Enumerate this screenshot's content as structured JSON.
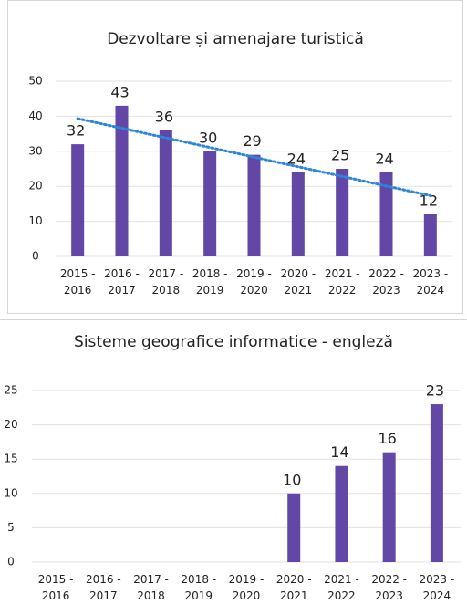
{
  "chart_data": [
    {
      "type": "bar",
      "title": "Dezvoltare și amenajare turistică",
      "categories": [
        "2015 - 2016",
        "2016 - 2017",
        "2017 - 2018",
        "2018 - 2019",
        "2019 - 2020",
        "2020 - 2021",
        "2021 - 2022",
        "2022 - 2023",
        "2023 - 2024"
      ],
      "values": [
        32,
        43,
        36,
        30,
        29,
        24,
        25,
        24,
        12
      ],
      "color": "#6247a6",
      "ylim": [
        0,
        50
      ],
      "yticks": [
        0,
        10,
        20,
        30,
        40,
        50
      ],
      "grid": true,
      "trendline": {
        "type": "linear",
        "color": "#2f86d8"
      }
    },
    {
      "type": "bar",
      "title": "Sisteme geografice informatice - engleză",
      "categories": [
        "2015 - 2016",
        "2016 - 2017",
        "2017 - 2018",
        "2018 - 2019",
        "2019 - 2020",
        "2020 - 2021",
        "2021 - 2022",
        "2022 - 2023",
        "2023 - 2024"
      ],
      "values": [
        null,
        null,
        null,
        null,
        null,
        10,
        14,
        16,
        23
      ],
      "color": "#6247a6",
      "ylim": [
        0,
        25
      ],
      "yticks": [
        0,
        5,
        10,
        15,
        20,
        25
      ],
      "grid": true
    }
  ]
}
